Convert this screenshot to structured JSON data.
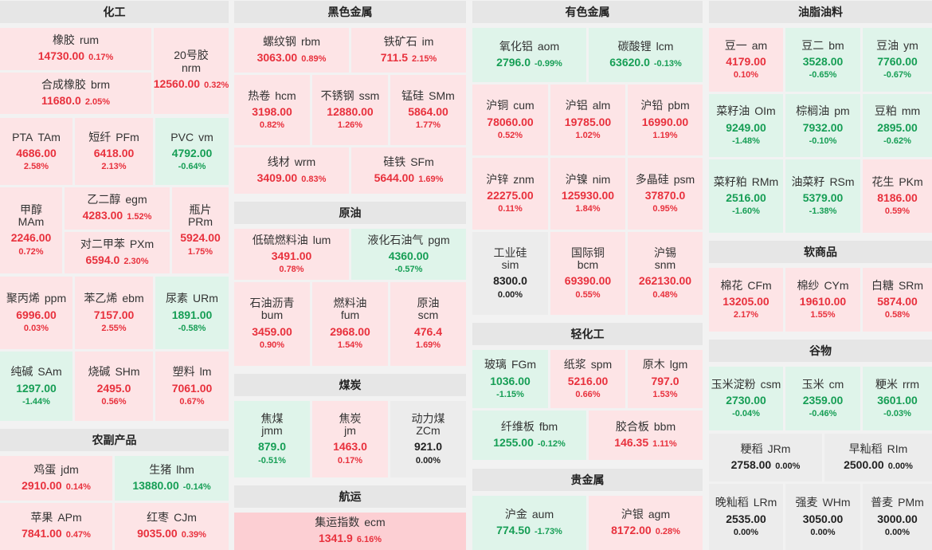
{
  "columns": [
    {
      "sections": [
        {
          "title": "化工",
          "tiles": [
            {
              "name": "橡胶",
              "code": "rum",
              "price": "14730.00",
              "pct": "0.17%",
              "trend": "up"
            },
            {
              "name": "20号胶",
              "code": "nrm",
              "price": "12560.00",
              "pct": "0.32%",
              "trend": "up"
            },
            {
              "name": "合成橡胶",
              "code": "brm",
              "price": "11680.0",
              "pct": "2.05%",
              "trend": "up"
            },
            {
              "name": "PTA",
              "code": "TAm",
              "price": "4686.00",
              "pct": "2.58%",
              "trend": "up"
            },
            {
              "name": "短纤",
              "code": "PFm",
              "price": "6418.00",
              "pct": "2.13%",
              "trend": "up"
            },
            {
              "name": "PVC",
              "code": "vm",
              "price": "4792.00",
              "pct": "-0.64%",
              "trend": "down"
            },
            {
              "name": "甲醇",
              "code": "MAm",
              "price": "2246.00",
              "pct": "0.72%",
              "trend": "up"
            },
            {
              "name": "乙二醇",
              "code": "egm",
              "price": "4283.00",
              "pct": "1.52%",
              "trend": "up"
            },
            {
              "name": "瓶片",
              "code": "PRm",
              "price": "5924.00",
              "pct": "1.75%",
              "trend": "up"
            },
            {
              "name": "对二甲苯",
              "code": "PXm",
              "price": "6594.0",
              "pct": "2.30%",
              "trend": "up"
            },
            {
              "name": "聚丙烯",
              "code": "ppm",
              "price": "6996.00",
              "pct": "0.03%",
              "trend": "up"
            },
            {
              "name": "苯乙烯",
              "code": "ebm",
              "price": "7157.00",
              "pct": "2.55%",
              "trend": "up"
            },
            {
              "name": "尿素",
              "code": "URm",
              "price": "1891.00",
              "pct": "-0.58%",
              "trend": "down"
            },
            {
              "name": "纯碱",
              "code": "SAm",
              "price": "1297.00",
              "pct": "-1.44%",
              "trend": "down"
            },
            {
              "name": "烧碱",
              "code": "SHm",
              "price": "2495.0",
              "pct": "0.56%",
              "trend": "up"
            },
            {
              "name": "塑料",
              "code": "lm",
              "price": "7061.00",
              "pct": "0.67%",
              "trend": "up"
            }
          ]
        },
        {
          "title": "农副产品",
          "tiles": [
            {
              "name": "鸡蛋",
              "code": "jdm",
              "price": "2910.00",
              "pct": "0.14%",
              "trend": "up"
            },
            {
              "name": "生猪",
              "code": "lhm",
              "price": "13880.00",
              "pct": "-0.14%",
              "trend": "down"
            },
            {
              "name": "苹果",
              "code": "APm",
              "price": "7841.00",
              "pct": "0.47%",
              "trend": "up"
            },
            {
              "name": "红枣",
              "code": "CJm",
              "price": "9035.00",
              "pct": "0.39%",
              "trend": "up"
            }
          ]
        }
      ]
    },
    {
      "sections": [
        {
          "title": "黑色金属",
          "tiles": [
            {
              "name": "螺纹钢",
              "code": "rbm",
              "price": "3063.00",
              "pct": "0.89%",
              "trend": "up"
            },
            {
              "name": "铁矿石",
              "code": "im",
              "price": "711.5",
              "pct": "2.15%",
              "trend": "up"
            },
            {
              "name": "热卷",
              "code": "hcm",
              "price": "3198.00",
              "pct": "0.82%",
              "trend": "up"
            },
            {
              "name": "不锈钢",
              "code": "ssm",
              "price": "12880.00",
              "pct": "1.26%",
              "trend": "up"
            },
            {
              "name": "锰硅",
              "code": "SMm",
              "price": "5864.00",
              "pct": "1.77%",
              "trend": "up"
            },
            {
              "name": "线材",
              "code": "wrm",
              "price": "3409.00",
              "pct": "0.83%",
              "trend": "up"
            },
            {
              "name": "硅铁",
              "code": "SFm",
              "price": "5644.00",
              "pct": "1.69%",
              "trend": "up"
            }
          ]
        },
        {
          "title": "原油",
          "tiles": [
            {
              "name": "低硫燃料油",
              "code": "lum",
              "price": "3491.00",
              "pct": "0.78%",
              "trend": "up"
            },
            {
              "name": "液化石油气",
              "code": "pgm",
              "price": "4360.00",
              "pct": "-0.57%",
              "trend": "down"
            },
            {
              "name": "石油沥青",
              "code": "bum",
              "price": "3459.00",
              "pct": "0.90%",
              "trend": "up"
            },
            {
              "name": "燃料油",
              "code": "fum",
              "price": "2968.00",
              "pct": "1.54%",
              "trend": "up"
            },
            {
              "name": "原油",
              "code": "scm",
              "price": "476.4",
              "pct": "1.69%",
              "trend": "up"
            }
          ]
        },
        {
          "title": "煤炭",
          "tiles": [
            {
              "name": "焦煤",
              "code": "jmm",
              "price": "879.0",
              "pct": "-0.51%",
              "trend": "down"
            },
            {
              "name": "焦炭",
              "code": "jm",
              "price": "1463.0",
              "pct": "0.17%",
              "trend": "up"
            },
            {
              "name": "动力煤",
              "code": "ZCm",
              "price": "921.0",
              "pct": "0.00%",
              "trend": "flat"
            }
          ]
        },
        {
          "title": "航运",
          "tiles": [
            {
              "name": "集运指数",
              "code": "ecm",
              "price": "1341.9",
              "pct": "6.16%",
              "trend": "up"
            }
          ]
        }
      ]
    },
    {
      "sections": [
        {
          "title": "有色金属",
          "tiles": [
            {
              "name": "氧化铝",
              "code": "aom",
              "price": "2796.0",
              "pct": "-0.99%",
              "trend": "down"
            },
            {
              "name": "碳酸锂",
              "code": "lcm",
              "price": "63620.0",
              "pct": "-0.13%",
              "trend": "down"
            },
            {
              "name": "沪铜",
              "code": "cum",
              "price": "78060.00",
              "pct": "0.52%",
              "trend": "up"
            },
            {
              "name": "沪铝",
              "code": "alm",
              "price": "19785.00",
              "pct": "1.02%",
              "trend": "up"
            },
            {
              "name": "沪铅",
              "code": "pbm",
              "price": "16990.00",
              "pct": "1.19%",
              "trend": "up"
            },
            {
              "name": "沪锌",
              "code": "znm",
              "price": "22275.00",
              "pct": "0.11%",
              "trend": "up"
            },
            {
              "name": "沪镍",
              "code": "nim",
              "price": "125930.00",
              "pct": "1.84%",
              "trend": "up"
            },
            {
              "name": "多晶硅",
              "code": "psm",
              "price": "37870.0",
              "pct": "0.95%",
              "trend": "up"
            },
            {
              "name": "工业硅",
              "code": "sim",
              "price": "8300.0",
              "pct": "0.00%",
              "trend": "flat"
            },
            {
              "name": "国际铜",
              "code": "bcm",
              "price": "69390.00",
              "pct": "0.55%",
              "trend": "up"
            },
            {
              "name": "沪锡",
              "code": "snm",
              "price": "262130.00",
              "pct": "0.48%",
              "trend": "up"
            }
          ]
        },
        {
          "title": "轻化工",
          "tiles": [
            {
              "name": "玻璃",
              "code": "FGm",
              "price": "1036.00",
              "pct": "-1.15%",
              "trend": "down"
            },
            {
              "name": "纸浆",
              "code": "spm",
              "price": "5216.00",
              "pct": "0.66%",
              "trend": "up"
            },
            {
              "name": "原木",
              "code": "lgm",
              "price": "797.0",
              "pct": "1.53%",
              "trend": "up"
            },
            {
              "name": "纤维板",
              "code": "fbm",
              "price": "1255.00",
              "pct": "-0.12%",
              "trend": "down"
            },
            {
              "name": "胶合板",
              "code": "bbm",
              "price": "146.35",
              "pct": "1.11%",
              "trend": "up"
            }
          ]
        },
        {
          "title": "贵金属",
          "tiles": [
            {
              "name": "沪金",
              "code": "aum",
              "price": "774.50",
              "pct": "-1.73%",
              "trend": "down"
            },
            {
              "name": "沪银",
              "code": "agm",
              "price": "8172.00",
              "pct": "0.28%",
              "trend": "up"
            }
          ]
        }
      ]
    },
    {
      "sections": [
        {
          "title": "油脂油料",
          "tiles": [
            {
              "name": "豆一",
              "code": "am",
              "price": "4179.00",
              "pct": "0.10%",
              "trend": "up"
            },
            {
              "name": "豆二",
              "code": "bm",
              "price": "3528.00",
              "pct": "-0.65%",
              "trend": "down"
            },
            {
              "name": "豆油",
              "code": "ym",
              "price": "7760.00",
              "pct": "-0.67%",
              "trend": "down"
            },
            {
              "name": "菜籽油",
              "code": "OIm",
              "price": "9249.00",
              "pct": "-1.48%",
              "trend": "down"
            },
            {
              "name": "棕榈油",
              "code": "pm",
              "price": "7932.00",
              "pct": "-0.10%",
              "trend": "down"
            },
            {
              "name": "豆粕",
              "code": "mm",
              "price": "2895.00",
              "pct": "-0.62%",
              "trend": "down"
            },
            {
              "name": "菜籽粕",
              "code": "RMm",
              "price": "2516.00",
              "pct": "-1.60%",
              "trend": "down"
            },
            {
              "name": "油菜籽",
              "code": "RSm",
              "price": "5379.00",
              "pct": "-1.38%",
              "trend": "down"
            },
            {
              "name": "花生",
              "code": "PKm",
              "price": "8186.00",
              "pct": "0.59%",
              "trend": "up"
            }
          ]
        },
        {
          "title": "软商品",
          "tiles": [
            {
              "name": "棉花",
              "code": "CFm",
              "price": "13205.00",
              "pct": "2.17%",
              "trend": "up"
            },
            {
              "name": "棉纱",
              "code": "CYm",
              "price": "19610.00",
              "pct": "1.55%",
              "trend": "up"
            },
            {
              "name": "白糖",
              "code": "SRm",
              "price": "5874.00",
              "pct": "0.58%",
              "trend": "up"
            }
          ]
        },
        {
          "title": "谷物",
          "tiles": [
            {
              "name": "玉米淀粉",
              "code": "csm",
              "price": "2730.00",
              "pct": "-0.04%",
              "trend": "down"
            },
            {
              "name": "玉米",
              "code": "cm",
              "price": "2359.00",
              "pct": "-0.46%",
              "trend": "down"
            },
            {
              "name": "粳米",
              "code": "rrm",
              "price": "3601.00",
              "pct": "-0.03%",
              "trend": "down"
            },
            {
              "name": "粳稻",
              "code": "JRm",
              "price": "2758.00",
              "pct": "0.00%",
              "trend": "flat"
            },
            {
              "name": "早籼稻",
              "code": "RIm",
              "price": "2500.00",
              "pct": "0.00%",
              "trend": "flat"
            },
            {
              "name": "晚籼稻",
              "code": "LRm",
              "price": "2535.00",
              "pct": "0.00%",
              "trend": "flat"
            },
            {
              "name": "强麦",
              "code": "WHm",
              "price": "3050.00",
              "pct": "0.00%",
              "trend": "flat"
            },
            {
              "name": "普麦",
              "code": "PMm",
              "price": "3000.00",
              "pct": "0.00%",
              "trend": "flat"
            }
          ]
        }
      ]
    }
  ]
}
